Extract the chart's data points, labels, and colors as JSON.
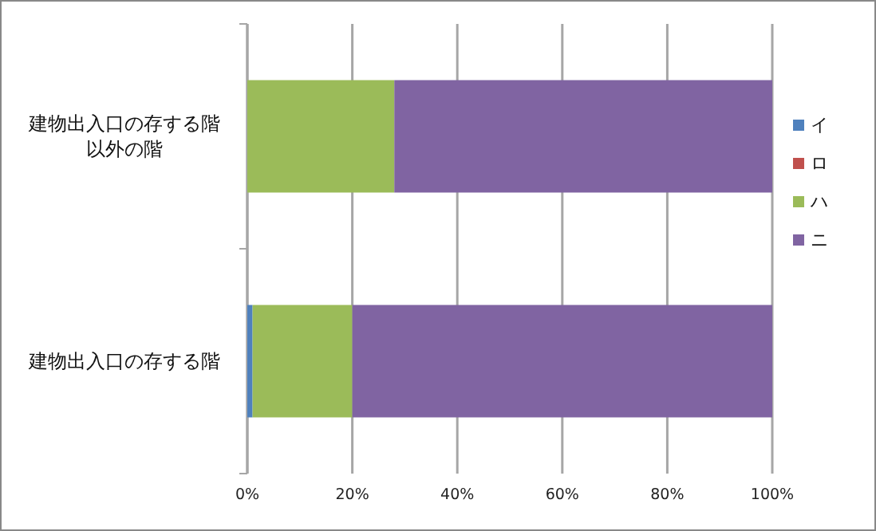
{
  "chart_data": {
    "type": "bar",
    "orientation": "horizontal",
    "stacked": true,
    "grid": "x",
    "legend": "right",
    "categories": [
      "建物出入口の存する階以外の階",
      "建物出入口の存する階"
    ],
    "series": [
      {
        "name": "イ",
        "color": "#4f81bd",
        "values": [
          0,
          1
        ]
      },
      {
        "name": "ロ",
        "color": "#c0504d",
        "values": [
          0,
          0
        ]
      },
      {
        "name": "ハ",
        "color": "#9bbb59",
        "values": [
          28,
          19
        ]
      },
      {
        "name": "ニ",
        "color": "#8064a2",
        "values": [
          72,
          80
        ]
      }
    ],
    "xlim": [
      0,
      100
    ],
    "xticks": [
      {
        "value": 0,
        "label": "0%"
      },
      {
        "value": 20,
        "label": "20%"
      },
      {
        "value": 40,
        "label": "40%"
      },
      {
        "value": 60,
        "label": "60%"
      },
      {
        "value": 80,
        "label": "80%"
      },
      {
        "value": 100,
        "label": "100%"
      }
    ]
  }
}
